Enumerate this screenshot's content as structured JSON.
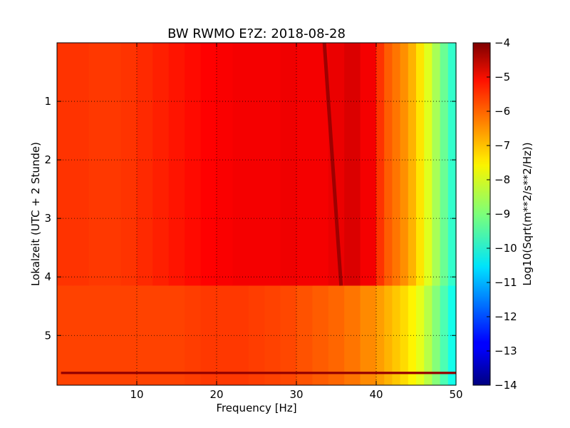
{
  "chart_data": {
    "type": "heatmap",
    "title": "BW RWMO E?Z: 2018-08-28",
    "xlabel": "Frequency [Hz]",
    "ylabel": "Lokalzeit (UTC + 2 Stunde)",
    "colorbar_label": "Log10(Sqrt(m**2/s**2/Hz))",
    "colormap": "jet",
    "xlim": [
      0,
      50
    ],
    "ylim": [
      0,
      5.85
    ],
    "y_inverted": true,
    "xticks": [
      10,
      20,
      30,
      40,
      50
    ],
    "yticks": [
      1,
      2,
      3,
      4,
      5
    ],
    "clim": [
      -14,
      -4
    ],
    "colorbar_ticks": [
      -4,
      -5,
      -6,
      -7,
      -8,
      -9,
      -10,
      -11,
      -12,
      -13,
      -14
    ],
    "grid": true,
    "x": [
      0,
      2,
      4,
      6,
      8,
      10,
      12,
      14,
      16,
      18,
      20,
      22,
      24,
      26,
      28,
      30,
      32,
      34,
      36,
      38,
      40,
      41,
      42,
      43,
      44,
      45,
      46,
      47,
      48,
      49,
      50
    ],
    "y_sections": [
      {
        "time_range": [
          0,
          4.15
        ],
        "values": [
          -5.8,
          -5.7,
          -5.8,
          -5.8,
          -5.8,
          -5.7,
          -5.6,
          -5.5,
          -5.4,
          -5.3,
          -5.2,
          -5.2,
          -5.1,
          -5.2,
          -5.1,
          -5.1,
          -5.2,
          -5.1,
          -5.0,
          -4.8,
          -5.5,
          -6.0,
          -6.3,
          -6.5,
          -6.8,
          -7.2,
          -7.8,
          -8.3,
          -8.9,
          -9.5,
          -10.0
        ]
      },
      {
        "time_range": [
          4.15,
          5.85
        ],
        "values": [
          -5.9,
          -5.9,
          -5.9,
          -5.9,
          -5.9,
          -5.9,
          -5.9,
          -5.9,
          -5.9,
          -5.8,
          -5.8,
          -5.8,
          -5.8,
          -5.9,
          -5.9,
          -6.0,
          -6.1,
          -6.2,
          -6.3,
          -6.5,
          -6.7,
          -6.9,
          -7.1,
          -7.3,
          -7.5,
          -7.8,
          -8.2,
          -8.7,
          -9.2,
          -9.8,
          -10.3
        ]
      }
    ],
    "lines": [
      {
        "type": "narrow-band",
        "value": -4.3,
        "freq_start": 33.5,
        "freq_end": 35.6,
        "time_start": 0.0,
        "time_end": 4.15
      },
      {
        "type": "narrow-band",
        "value": -4.2,
        "freq_start": 0.5,
        "freq_end": 50,
        "time_start": 5.62,
        "time_end": 5.66
      }
    ]
  }
}
